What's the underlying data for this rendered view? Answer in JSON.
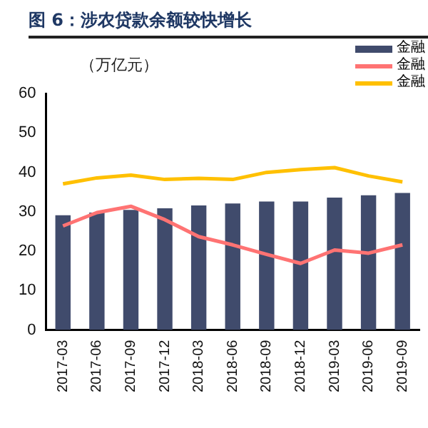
{
  "chart_data": {
    "type": "bar",
    "title": "图 6：涉农贷款余额较快增长",
    "ylabel": "（万亿元）",
    "categories": [
      "2017-03",
      "2017-06",
      "2017-09",
      "2017-12",
      "2018-03",
      "2018-06",
      "2018-09",
      "2018-12",
      "2019-03",
      "2019-06",
      "2019-09"
    ],
    "series": [
      {
        "name": "金融",
        "color": "#404b6c",
        "values": [
          29.1,
          29.8,
          30.5,
          30.9,
          31.6,
          32.1,
          32.6,
          32.6,
          33.6,
          34.2,
          34.8
        ]
      },
      {
        "name": "金融",
        "type": "line",
        "color": "#ff7373",
        "values": [
          26.4,
          29.8,
          31.4,
          28.0,
          23.7,
          21.6,
          19.2,
          16.9,
          20.3,
          19.5,
          21.6
        ]
      },
      {
        "name": "金融",
        "type": "line",
        "color": "#ffc000",
        "values": [
          37.1,
          38.6,
          39.3,
          38.2,
          38.5,
          38.2,
          40.0,
          40.7,
          41.2,
          39.1,
          37.6
        ]
      }
    ],
    "ylim": [
      0,
      60
    ],
    "yticks": [
      0,
      10,
      20,
      30,
      40,
      50,
      60
    ],
    "grid": false,
    "legend": "top right",
    "marker": "none"
  }
}
